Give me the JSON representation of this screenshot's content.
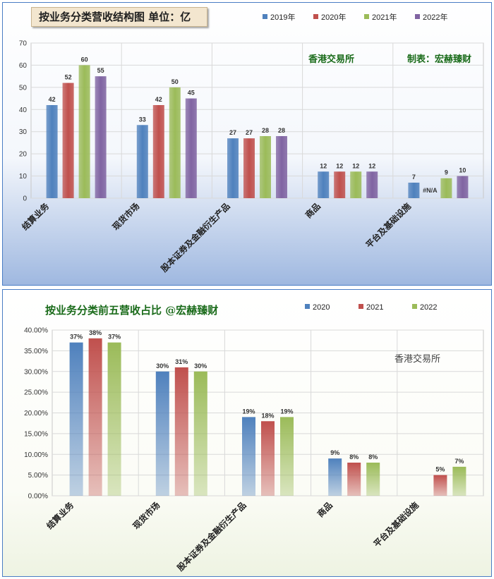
{
  "chart_data": [
    {
      "type": "bar",
      "title": "按业务分类营收结构图 单位：亿",
      "categories": [
        "结算业务",
        "现货市场",
        "股本证券及金融衍生产品",
        "商品",
        "平台及基础设施"
      ],
      "series": [
        {
          "name": "2019年",
          "values": [
            42,
            33,
            27,
            12,
            7
          ],
          "labels": [
            "42",
            "33",
            "27",
            "12",
            "7"
          ],
          "color": "#4f81bd"
        },
        {
          "name": "2020年",
          "values": [
            52,
            42,
            27,
            12,
            0
          ],
          "labels": [
            "52",
            "42",
            "27",
            "12",
            "#N/A"
          ],
          "color": "#c0504d"
        },
        {
          "name": "2021年",
          "values": [
            60,
            50,
            28,
            12,
            9
          ],
          "labels": [
            "60",
            "50",
            "28",
            "12",
            "9"
          ],
          "color": "#9bbb59"
        },
        {
          "name": "2022年",
          "values": [
            55,
            45,
            28,
            12,
            10
          ],
          "labels": [
            "55",
            "45",
            "28",
            "12",
            "10"
          ],
          "color": "#8064a2"
        }
      ],
      "ylim": [
        0,
        70
      ],
      "yticks": [
        "0",
        "10",
        "20",
        "30",
        "40",
        "50",
        "60",
        "70"
      ],
      "grid": true,
      "legend": "top-right",
      "annotations": [
        "香港交易所",
        "制表：宏赫臻财"
      ]
    },
    {
      "type": "bar",
      "title": "按业务分类前五营收占比 @宏赫臻财",
      "categories": [
        "结算业务",
        "现货市场",
        "股本证券及金融衍生产品",
        "商品",
        "平台及基础设施"
      ],
      "series": [
        {
          "name": "2020",
          "values": [
            37,
            30,
            19,
            9,
            0
          ],
          "labels": [
            "37%",
            "30%",
            "19%",
            "9%",
            ""
          ],
          "color": "#4f81bd"
        },
        {
          "name": "2021",
          "values": [
            38,
            31,
            18,
            8,
            5
          ],
          "labels": [
            "38%",
            "31%",
            "18%",
            "8%",
            "5%"
          ],
          "color": "#c0504d"
        },
        {
          "name": "2022",
          "values": [
            37,
            30,
            19,
            8,
            7
          ],
          "labels": [
            "37%",
            "30%",
            "19%",
            "8%",
            "7%"
          ],
          "color": "#9bbb59"
        }
      ],
      "ylim": [
        0,
        40
      ],
      "yticks": [
        "0.00%",
        "5.00%",
        "10.00%",
        "15.00%",
        "20.00%",
        "25.00%",
        "30.00%",
        "35.00%",
        "40.00%"
      ],
      "grid": true,
      "legend": "top-right",
      "annotations": [
        "香港交易所"
      ]
    }
  ]
}
